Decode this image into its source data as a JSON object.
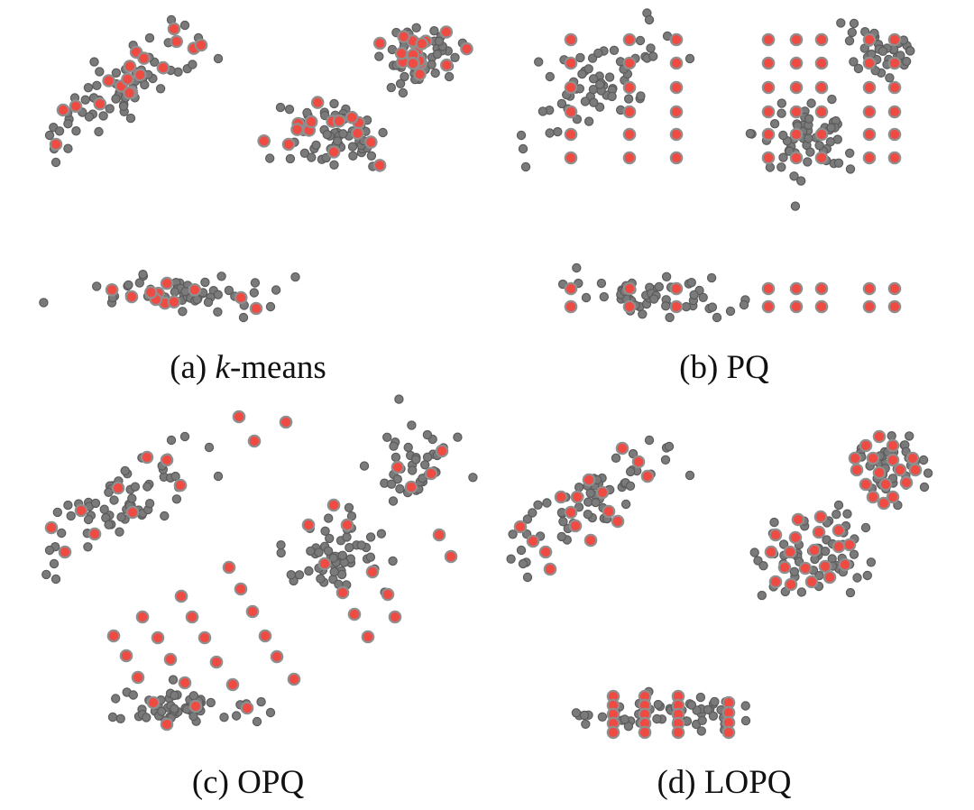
{
  "colors": {
    "data_point_fill": "#7a7a7a",
    "data_point_stroke": "#5b5b5b",
    "centroid_fill": "#ef4b42",
    "centroid_stroke": "#8f8f8f"
  },
  "panels": [
    {
      "id": "a",
      "prefix": "(a) ",
      "var": "k",
      "suffix": "-means"
    },
    {
      "id": "b",
      "prefix": "(b) ",
      "var": "",
      "suffix": "PQ"
    },
    {
      "id": "c",
      "prefix": "(c) ",
      "var": "",
      "suffix": "OPQ"
    },
    {
      "id": "d",
      "prefix": "(d) ",
      "var": "",
      "suffix": "LOPQ"
    }
  ]
}
